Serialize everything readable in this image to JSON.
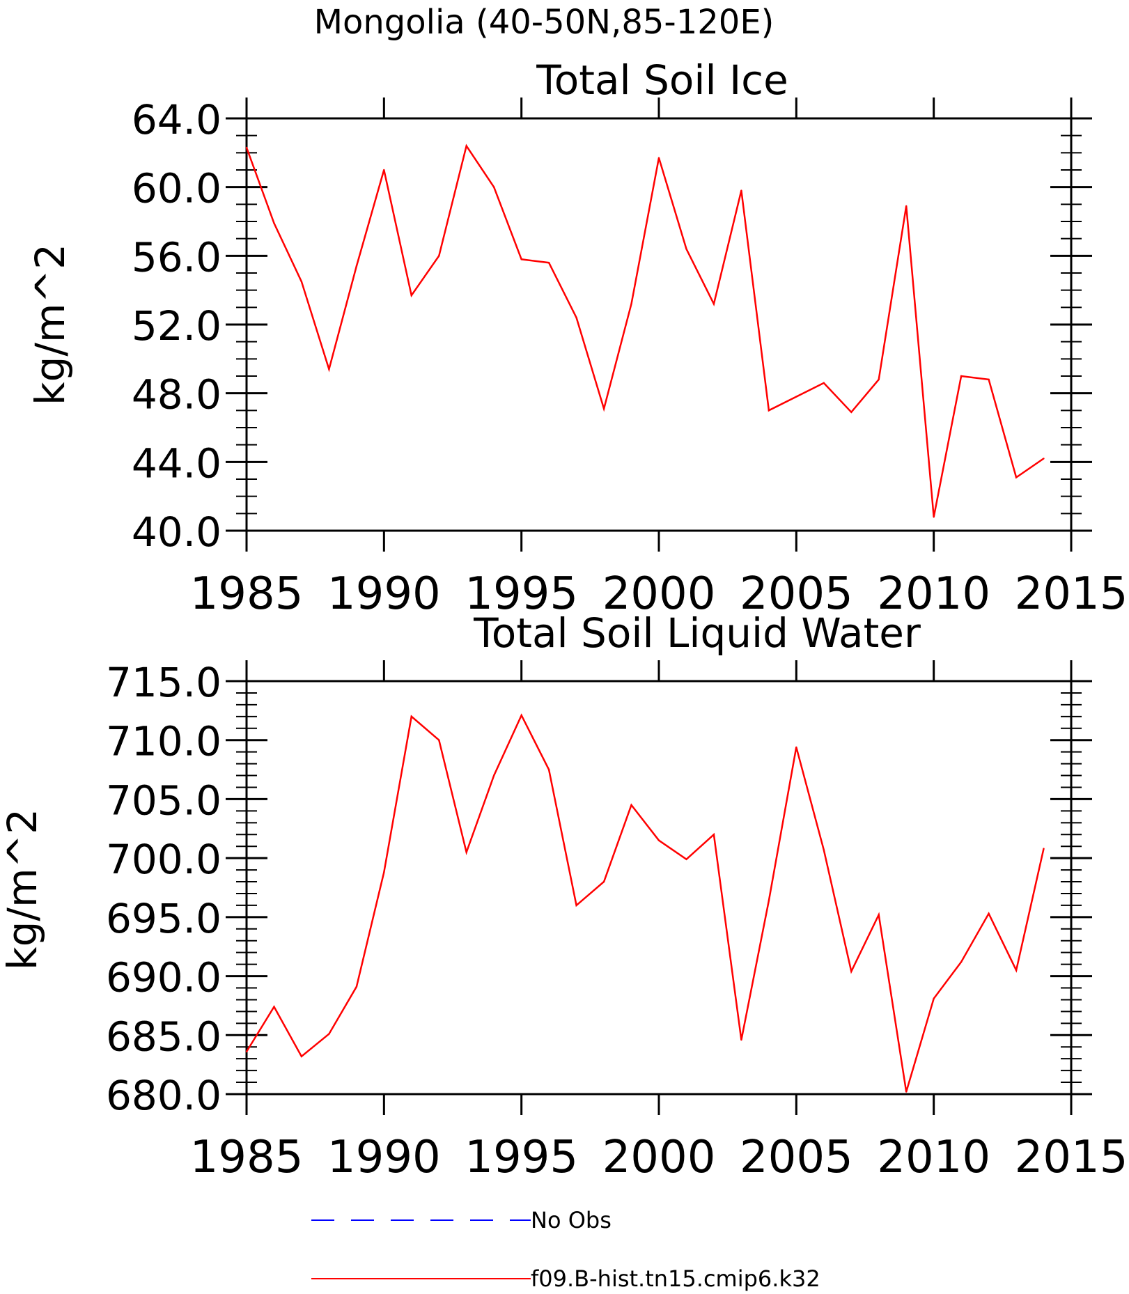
{
  "figure": {
    "main_title": "Mongolia (40-50N,85-120E)"
  },
  "chart_data": [
    {
      "type": "line",
      "title": "Total Soil Ice",
      "xlabel": "",
      "ylabel": "kg/m^2",
      "xlim": [
        1985,
        2015
      ],
      "ylim": [
        40,
        64
      ],
      "x_ticks": [
        "1985",
        "1990",
        "1995",
        "2000",
        "2005",
        "2010",
        "2015"
      ],
      "y_ticks": [
        "40.0",
        "44.0",
        "48.0",
        "52.0",
        "56.0",
        "60.0",
        "64.0"
      ],
      "grid": false,
      "x": [
        1985,
        1986,
        1987,
        1988,
        1989,
        1990,
        1991,
        1992,
        1993,
        1994,
        1995,
        1996,
        1997,
        1998,
        1999,
        2000,
        2001,
        2002,
        2003,
        2004,
        2005,
        2006,
        2007,
        2008,
        2009,
        2010,
        2011,
        2012,
        2013,
        2014
      ],
      "series": [
        {
          "name": "f09.B-hist.tn15.cmip6.k32",
          "color": "#ff0000",
          "values": [
            62.3,
            57.9,
            54.5,
            49.4,
            55.4,
            61.0,
            53.7,
            56.0,
            62.4,
            60.0,
            55.8,
            55.6,
            52.4,
            47.1,
            53.2,
            61.7,
            56.4,
            53.2,
            59.8,
            47.0,
            47.8,
            48.6,
            46.9,
            48.8,
            58.9,
            40.8,
            49.0,
            48.8,
            43.1,
            44.2
          ]
        }
      ]
    },
    {
      "type": "line",
      "title": "Total Soil Liquid Water",
      "xlabel": "",
      "ylabel": "kg/m^2",
      "xlim": [
        1985,
        2015
      ],
      "ylim": [
        680,
        715
      ],
      "x_ticks": [
        "1985",
        "1990",
        "1995",
        "2000",
        "2005",
        "2010",
        "2015"
      ],
      "y_ticks": [
        "680.0",
        "685.0",
        "690.0",
        "695.0",
        "700.0",
        "705.0",
        "710.0",
        "715.0"
      ],
      "grid": false,
      "x": [
        1985,
        1986,
        1987,
        1988,
        1989,
        1990,
        1991,
        1992,
        1993,
        1994,
        1995,
        1996,
        1997,
        1998,
        1999,
        2000,
        2001,
        2002,
        2003,
        2004,
        2005,
        2006,
        2007,
        2008,
        2009,
        2010,
        2011,
        2012,
        2013,
        2014
      ],
      "series": [
        {
          "name": "f09.B-hist.tn15.cmip6.k32",
          "color": "#ff0000",
          "values": [
            683.6,
            687.4,
            683.2,
            685.1,
            689.1,
            698.8,
            712.0,
            710.0,
            700.5,
            707.0,
            712.1,
            707.5,
            696.0,
            698.0,
            704.5,
            701.5,
            699.9,
            702.0,
            684.6,
            696.4,
            709.4,
            700.7,
            690.4,
            695.2,
            680.2,
            688.1,
            691.2,
            695.3,
            690.5,
            700.8
          ]
        }
      ]
    }
  ],
  "legend": {
    "entries": [
      {
        "label": "No Obs",
        "color": "#0000ff",
        "style": "dashed"
      },
      {
        "label": "f09.B-hist.tn15.cmip6.k32",
        "color": "#ff0000",
        "style": "solid"
      }
    ]
  }
}
